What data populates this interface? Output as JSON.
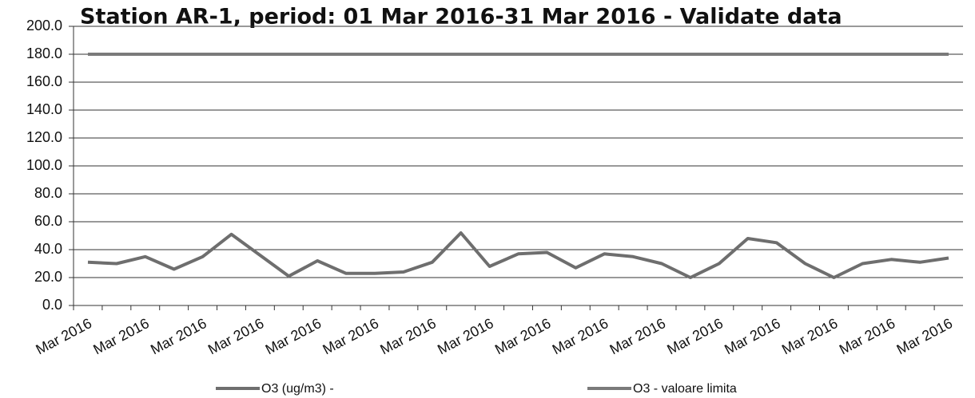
{
  "chart_data": {
    "type": "line",
    "title": "Station AR-1, period: 01 Mar 2016-31 Mar 2016 - Validate data",
    "categories": [
      "Mar 2016",
      null,
      "Mar 2016",
      null,
      "Mar 2016",
      null,
      "Mar 2016",
      null,
      "Mar 2016",
      null,
      "Mar 2016",
      null,
      "Mar 2016",
      null,
      "Mar 2016",
      null,
      "Mar 2016",
      null,
      "Mar 2016",
      null,
      "Mar 2016",
      null,
      "Mar 2016",
      null,
      "Mar 2016",
      null,
      "Mar 2016",
      null,
      "Mar 2016",
      null,
      "Mar 2016"
    ],
    "series": [
      {
        "name": "O3 (ug/m3)  -",
        "color": "#6e6e6e",
        "values": [
          31,
          30,
          35,
          26,
          35,
          51,
          36,
          21,
          32,
          23,
          23,
          24,
          31,
          52,
          28,
          37,
          38,
          27,
          37,
          35,
          30,
          20,
          30,
          48,
          45,
          30,
          20,
          30,
          33,
          31,
          34
        ]
      },
      {
        "name": "O3 - valoare limita",
        "color": "#7a7a7a",
        "values": [
          180,
          180,
          180,
          180,
          180,
          180,
          180,
          180,
          180,
          180,
          180,
          180,
          180,
          180,
          180,
          180,
          180,
          180,
          180,
          180,
          180,
          180,
          180,
          180,
          180,
          180,
          180,
          180,
          180,
          180,
          180
        ]
      }
    ],
    "ylim": [
      0,
      200
    ],
    "yticks": [
      {
        "value": 0,
        "label": "0.0"
      },
      {
        "value": 20,
        "label": "20.0"
      },
      {
        "value": 40,
        "label": "40.0"
      },
      {
        "value": 60,
        "label": "60.0"
      },
      {
        "value": 80,
        "label": "80.0"
      },
      {
        "value": 100,
        "label": "100.0"
      },
      {
        "value": 120,
        "label": "120.0"
      },
      {
        "value": 140,
        "label": "140.0"
      },
      {
        "value": 160,
        "label": "160.0"
      },
      {
        "value": 180,
        "label": "180.0"
      },
      {
        "value": 200,
        "label": "200.0"
      }
    ],
    "grid": true
  }
}
